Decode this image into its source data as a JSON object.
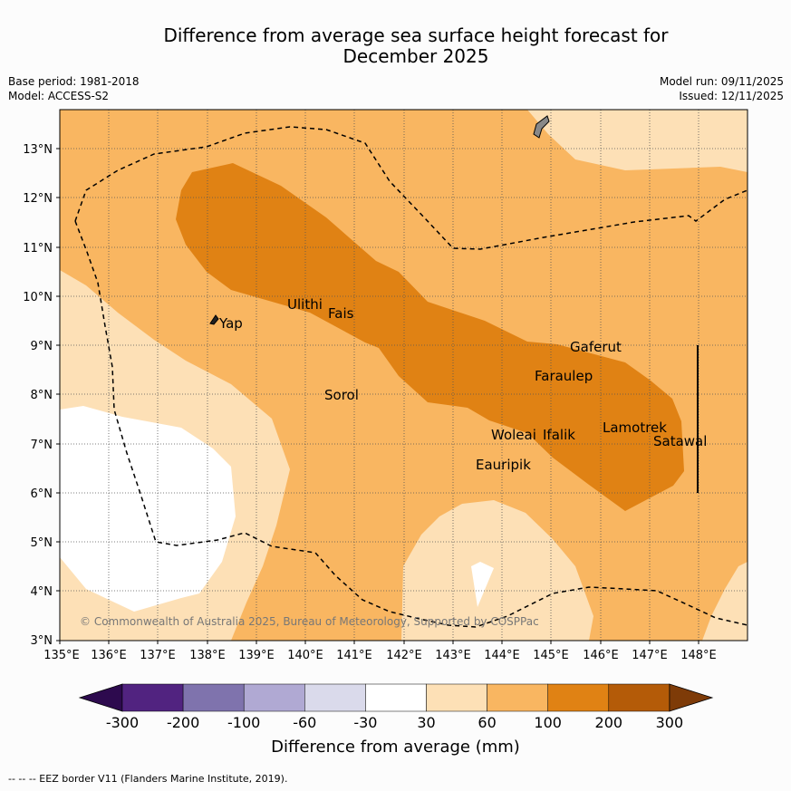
{
  "title_line1": "Difference from average sea surface height forecast for",
  "title_line2": "December 2025",
  "base_period": "Base period: 1981-2018",
  "model": "Model: ACCESS-S2",
  "model_run": "Model run: 09/11/2025",
  "issued": "Issued: 12/11/2025",
  "lat_labels": [
    "3°N",
    "4°N",
    "5°N",
    "6°N",
    "7°N",
    "8°N",
    "9°N",
    "10°N",
    "11°N",
    "12°N",
    "13°N"
  ],
  "lon_labels": [
    "135°E",
    "136°E",
    "137°E",
    "138°E",
    "139°E",
    "140°E",
    "141°E",
    "142°E",
    "143°E",
    "144°E",
    "145°E",
    "146°E",
    "147°E",
    "148°E"
  ],
  "places": [
    "Yap",
    "Ulithi",
    "Fais",
    "Sorol",
    "Gaferut",
    "Faraulep",
    "Woleai",
    "Ifalik",
    "Lamotrek",
    "Satawal",
    "Eauripik"
  ],
  "copyright": "© Commonwealth of Australia 2025, Bureau of Meteorology, Supported by COSPPac",
  "colorbar": {
    "ticks": [
      "-300",
      "-200",
      "-100",
      "-60",
      "-30",
      "30",
      "60",
      "100",
      "200",
      "300"
    ],
    "colors": [
      "#2d0a4e",
      "#512380",
      "#7f73ad",
      "#b0a9d3",
      "#dadaeb",
      "#ffffff",
      "#fde0b6",
      "#f9b661",
      "#e08214",
      "#b45b08",
      "#7e3b08"
    ],
    "label": "Difference from average (mm)"
  },
  "footer": "--  --  -- EEZ border V11 (Flanders Marine Institute, 2019)."
}
